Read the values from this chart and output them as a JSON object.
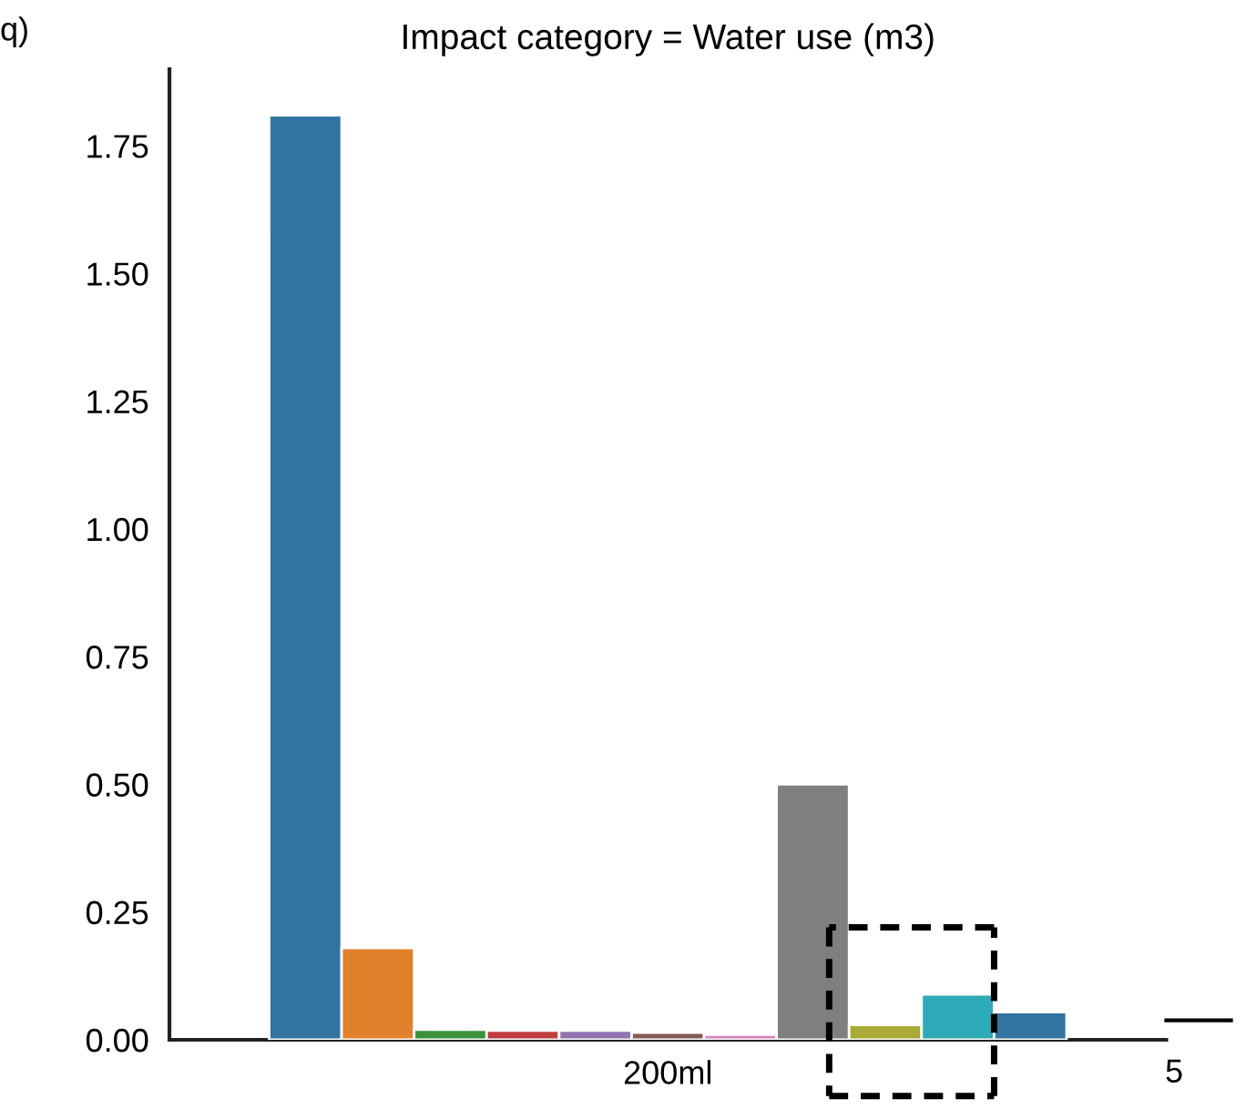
{
  "chart_data": {
    "type": "bar",
    "title": "Impact category = Water use (m3)",
    "categories": [
      "200ml"
    ],
    "series": [
      {
        "color": "#3274a1",
        "values": [
          1.81
        ]
      },
      {
        "color": "#e1812c",
        "values": [
          0.18
        ]
      },
      {
        "color": "#3a923a",
        "values": [
          0.02
        ]
      },
      {
        "color": "#c03d3e",
        "values": [
          0.018
        ]
      },
      {
        "color": "#9372b2",
        "values": [
          0.018
        ]
      },
      {
        "color": "#845b53",
        "values": [
          0.014
        ]
      },
      {
        "color": "#d684bd",
        "values": [
          0.01
        ]
      },
      {
        "color": "#7f7f7f",
        "values": [
          0.5
        ]
      },
      {
        "color": "#a9aa35",
        "values": [
          0.029
        ]
      },
      {
        "color": "#2eabb8",
        "values": [
          0.089
        ]
      },
      {
        "color": "#3274a1",
        "values": [
          0.054
        ]
      }
    ],
    "ylim": [
      0,
      1.9
    ],
    "yticks": [
      {
        "value": 0,
        "label": "0.00"
      },
      {
        "value": 0.25,
        "label": "0.25"
      },
      {
        "value": 0.5,
        "label": "0.50"
      },
      {
        "value": 0.75,
        "label": "0.75"
      },
      {
        "value": 1.0,
        "label": "1.00"
      },
      {
        "value": 1.25,
        "label": "1.25"
      },
      {
        "value": 1.5,
        "label": "1.50"
      },
      {
        "value": 1.75,
        "label": "1.75"
      }
    ],
    "annotations": [
      "q)",
      "5"
    ],
    "grid": false,
    "legend": false
  }
}
